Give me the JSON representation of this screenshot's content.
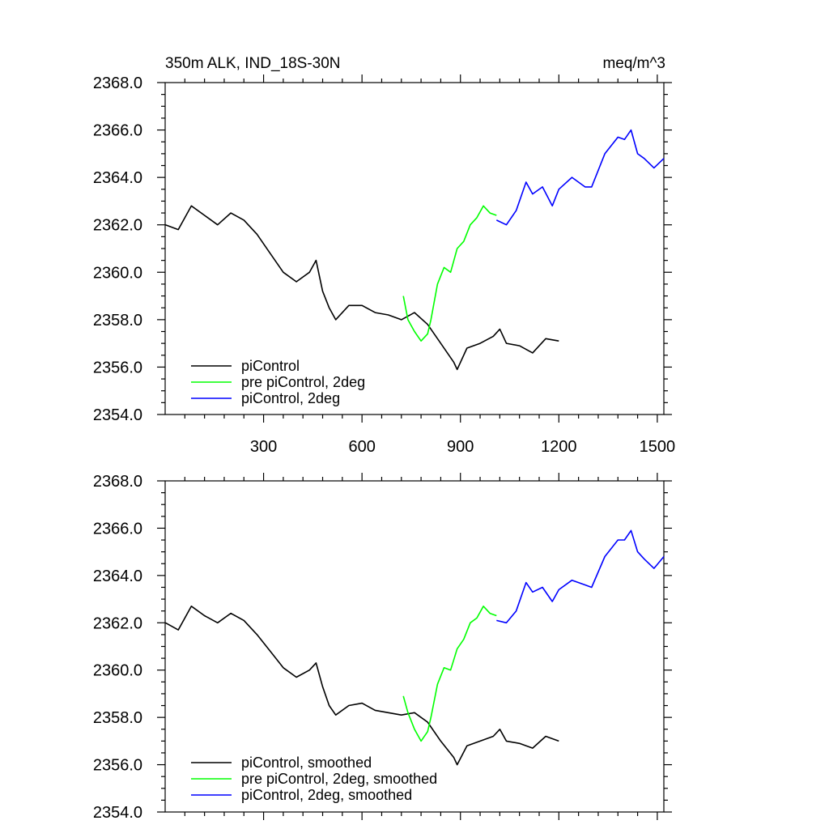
{
  "colors": {
    "piControl": "#000000",
    "pre_piControl_2deg": "#00ff00",
    "piControl_2deg": "#0000ff"
  },
  "chart_data": [
    {
      "type": "line",
      "title": "350m ALK, IND_18S-30N",
      "units": "meq/m^3",
      "xlim": [
        0,
        1520
      ],
      "ylim": [
        2354.0,
        2368.0
      ],
      "x_ticks": [
        300,
        600,
        900,
        1200,
        1500
      ],
      "x_tick_labels": [
        "300",
        "600",
        "900",
        "1200",
        "1500"
      ],
      "y_ticks": [
        2354.0,
        2356.0,
        2358.0,
        2360.0,
        2362.0,
        2364.0,
        2366.0,
        2368.0
      ],
      "y_tick_labels": [
        "2354.0",
        "2356.0",
        "2358.0",
        "2360.0",
        "2362.0",
        "2364.0",
        "2366.0",
        "2368.0"
      ],
      "legend_position": "bottom-left",
      "grid": false,
      "series": [
        {
          "name": "piControl",
          "color": "#000000",
          "x": [
            1,
            40,
            80,
            120,
            160,
            200,
            240,
            280,
            320,
            360,
            400,
            440,
            460,
            480,
            500,
            520,
            560,
            600,
            640,
            680,
            720,
            760,
            800,
            840,
            880,
            890,
            920,
            960,
            1000,
            1020,
            1040,
            1080,
            1120,
            1160,
            1200
          ],
          "y": [
            2362.0,
            2361.8,
            2362.8,
            2362.4,
            2362.0,
            2362.5,
            2362.2,
            2361.6,
            2360.8,
            2360.0,
            2359.6,
            2360.0,
            2360.5,
            2359.2,
            2358.5,
            2358.0,
            2358.6,
            2358.6,
            2358.3,
            2358.2,
            2358.0,
            2358.3,
            2357.8,
            2357.0,
            2356.2,
            2355.9,
            2356.8,
            2357.0,
            2357.3,
            2357.6,
            2357.0,
            2356.9,
            2356.6,
            2357.2,
            2357.1
          ]
        },
        {
          "name": "pre piControl, 2deg",
          "color": "#00ff00",
          "x": [
            726,
            740,
            760,
            780,
            800,
            810,
            830,
            850,
            870,
            890,
            910,
            930,
            950,
            970,
            990,
            1010
          ],
          "y": [
            2359.0,
            2358.0,
            2357.5,
            2357.1,
            2357.4,
            2358.0,
            2359.5,
            2360.2,
            2360.0,
            2361.0,
            2361.3,
            2362.0,
            2362.3,
            2362.8,
            2362.5,
            2362.4
          ]
        },
        {
          "name": "piControl, 2deg",
          "color": "#0000ff",
          "x": [
            1010,
            1040,
            1070,
            1100,
            1120,
            1150,
            1180,
            1200,
            1240,
            1280,
            1300,
            1340,
            1380,
            1400,
            1420,
            1440,
            1460,
            1490,
            1520
          ],
          "y": [
            2362.2,
            2362.0,
            2362.6,
            2363.8,
            2363.3,
            2363.6,
            2362.8,
            2363.5,
            2364.0,
            2363.6,
            2363.6,
            2365.0,
            2365.7,
            2365.6,
            2366.0,
            2365.0,
            2364.8,
            2364.4,
            2364.8
          ]
        }
      ]
    },
    {
      "type": "line",
      "title": "",
      "xlim": [
        0,
        1520
      ],
      "ylim": [
        2354.0,
        2368.0
      ],
      "y_ticks": [
        2354.0,
        2356.0,
        2358.0,
        2360.0,
        2362.0,
        2364.0,
        2366.0,
        2368.0
      ],
      "y_tick_labels": [
        "2354.0",
        "2356.0",
        "2358.0",
        "2360.0",
        "2362.0",
        "2364.0",
        "2366.0",
        "2368.0"
      ],
      "legend_position": "bottom-left",
      "grid": false,
      "series": [
        {
          "name": "piControl, smoothed",
          "color": "#000000",
          "x": [
            1,
            40,
            80,
            120,
            160,
            200,
            240,
            280,
            320,
            360,
            400,
            440,
            460,
            480,
            500,
            520,
            560,
            600,
            640,
            680,
            720,
            760,
            800,
            840,
            880,
            890,
            920,
            960,
            1000,
            1020,
            1040,
            1080,
            1120,
            1160,
            1200
          ],
          "y": [
            2362.0,
            2361.7,
            2362.7,
            2362.3,
            2362.0,
            2362.4,
            2362.1,
            2361.5,
            2360.8,
            2360.1,
            2359.7,
            2360.0,
            2360.3,
            2359.3,
            2358.5,
            2358.1,
            2358.5,
            2358.6,
            2358.3,
            2358.2,
            2358.1,
            2358.2,
            2357.8,
            2357.0,
            2356.3,
            2356.0,
            2356.8,
            2357.0,
            2357.2,
            2357.5,
            2357.0,
            2356.9,
            2356.7,
            2357.2,
            2357.0
          ]
        },
        {
          "name": "pre piControl, 2deg, smoothed",
          "color": "#00ff00",
          "x": [
            726,
            740,
            760,
            780,
            800,
            810,
            830,
            850,
            870,
            890,
            910,
            930,
            950,
            970,
            990,
            1010
          ],
          "y": [
            2358.9,
            2358.2,
            2357.5,
            2357.0,
            2357.4,
            2358.0,
            2359.4,
            2360.1,
            2360.0,
            2360.9,
            2361.3,
            2362.0,
            2362.2,
            2362.7,
            2362.4,
            2362.3
          ]
        },
        {
          "name": "piControl, 2deg, smoothed",
          "color": "#0000ff",
          "x": [
            1010,
            1040,
            1070,
            1100,
            1120,
            1150,
            1180,
            1200,
            1240,
            1280,
            1300,
            1340,
            1380,
            1400,
            1420,
            1440,
            1460,
            1490,
            1520
          ],
          "y": [
            2362.1,
            2362.0,
            2362.5,
            2363.7,
            2363.3,
            2363.5,
            2362.9,
            2363.4,
            2363.8,
            2363.6,
            2363.5,
            2364.8,
            2365.5,
            2365.5,
            2365.9,
            2365.0,
            2364.7,
            2364.3,
            2364.8
          ]
        }
      ]
    }
  ]
}
